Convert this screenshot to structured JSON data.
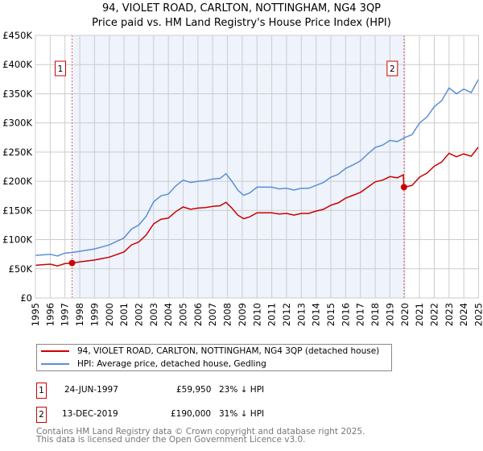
{
  "chart_data": {
    "type": "line",
    "title": "94, VIOLET ROAD, CARLTON, NOTTINGHAM, NG4 3QP",
    "subtitle": "Price paid vs. HM Land Registry's House Price Index (HPI)",
    "xlim": [
      1995,
      2025.1
    ],
    "ylim": [
      0,
      450000
    ],
    "y_ticks": [
      0,
      50000,
      100000,
      150000,
      200000,
      250000,
      300000,
      350000,
      400000,
      450000
    ],
    "y_tick_labels": [
      "£0",
      "£50K",
      "£100K",
      "£150K",
      "£200K",
      "£250K",
      "£300K",
      "£350K",
      "£400K",
      "£450K"
    ],
    "x_tick_labels": [
      "1995",
      "1996",
      "1997",
      "1998",
      "1999",
      "2000",
      "2001",
      "2002",
      "2003",
      "2004",
      "2005",
      "2006",
      "2007",
      "2008",
      "2009",
      "2010",
      "2011",
      "2012",
      "2013",
      "2014",
      "2015",
      "2016",
      "2017",
      "2018",
      "2019",
      "2020",
      "2021",
      "2022",
      "2023",
      "2024",
      "2025"
    ],
    "grid": true,
    "shaded_range": [
      1997.48,
      2019.95
    ],
    "series": [
      {
        "name": "94, VIOLET ROAD, CARLTON, NOTTINGHAM, NG4 3QP (detached house)",
        "color": "#cc0000",
        "x": [
          1995,
          1996,
          1996.5,
          1997,
          1997.48,
          1998,
          1999,
          2000,
          2001,
          2001.5,
          2002,
          2002.5,
          2003,
          2003.5,
          2004,
          2004.5,
          2005,
          2005.5,
          2006,
          2006.5,
          2007,
          2007.5,
          2007.9,
          2008.3,
          2008.7,
          2009.1,
          2009.5,
          2010,
          2010.5,
          2011,
          2011.5,
          2012,
          2012.5,
          2013,
          2013.5,
          2014,
          2014.5,
          2015,
          2015.5,
          2016,
          2016.5,
          2017,
          2017.5,
          2018,
          2018.5,
          2019,
          2019.5,
          2019.9,
          2019.95,
          2020.5,
          2021,
          2021.5,
          2022,
          2022.5,
          2023,
          2023.5,
          2024,
          2024.5,
          2025
        ],
        "y": [
          56000,
          58000,
          55000,
          59000,
          59950,
          62000,
          65000,
          70000,
          79000,
          91000,
          96000,
          108000,
          127000,
          135000,
          137000,
          148000,
          156000,
          152000,
          154000,
          155000,
          157000,
          158000,
          164000,
          154000,
          142000,
          136000,
          139000,
          146000,
          146000,
          146000,
          144000,
          145000,
          142000,
          145000,
          145000,
          149000,
          152000,
          159000,
          163000,
          171000,
          176000,
          181000,
          190000,
          199000,
          202000,
          208000,
          206000,
          211000,
          190000,
          193000,
          207000,
          214000,
          226000,
          233000,
          248000,
          242000,
          247000,
          243000,
          259000
        ]
      },
      {
        "name": "HPI: Average price, detached house, Gedling",
        "color": "#5b8fd4",
        "x": [
          1995,
          1996,
          1996.5,
          1997,
          1997.5,
          1998,
          1999,
          2000,
          2001,
          2001.5,
          2002,
          2002.5,
          2003,
          2003.5,
          2004,
          2004.5,
          2005,
          2005.5,
          2006,
          2006.5,
          2007,
          2007.5,
          2007.9,
          2008.3,
          2008.7,
          2009.1,
          2009.5,
          2010,
          2010.5,
          2011,
          2011.5,
          2012,
          2012.5,
          2013,
          2013.5,
          2014,
          2014.5,
          2015,
          2015.5,
          2016,
          2016.5,
          2017,
          2017.5,
          2018,
          2018.5,
          2019,
          2019.5,
          2020,
          2020.5,
          2021,
          2021.5,
          2022,
          2022.5,
          2023,
          2023.5,
          2024,
          2024.5,
          2025
        ],
        "y": [
          73000,
          75000,
          72000,
          77000,
          78000,
          80000,
          84000,
          91000,
          103000,
          118000,
          125000,
          140000,
          165000,
          175000,
          178000,
          192000,
          202000,
          198000,
          200000,
          201000,
          204000,
          205000,
          213000,
          200000,
          185000,
          176000,
          180000,
          190000,
          190000,
          190000,
          187000,
          188000,
          185000,
          188000,
          188000,
          193000,
          198000,
          207000,
          212000,
          222000,
          228000,
          235000,
          247000,
          258000,
          262000,
          270000,
          268000,
          275000,
          280000,
          300000,
          310000,
          328000,
          338000,
          360000,
          350000,
          358000,
          352000,
          375000
        ]
      }
    ],
    "annotations": [
      {
        "label": "1",
        "x": 1997.48,
        "y": 59950
      },
      {
        "label": "2",
        "x": 2019.95,
        "y": 190000
      }
    ]
  },
  "legend": {
    "property": "94, VIOLET ROAD, CARLTON, NOTTINGHAM, NG4 3QP (detached house)",
    "hpi": "HPI: Average price, detached house, Gedling"
  },
  "sales": [
    {
      "num": "1",
      "date": "24-JUN-1997",
      "price": "£59,950",
      "delta": "23% ↓ HPI"
    },
    {
      "num": "2",
      "date": "13-DEC-2019",
      "price": "£190,000",
      "delta": "31% ↓ HPI"
    }
  ],
  "footer": {
    "line1": "Contains HM Land Registry data © Crown copyright and database right 2025.",
    "line2": "This data is licensed under the Open Government Licence v3.0."
  }
}
